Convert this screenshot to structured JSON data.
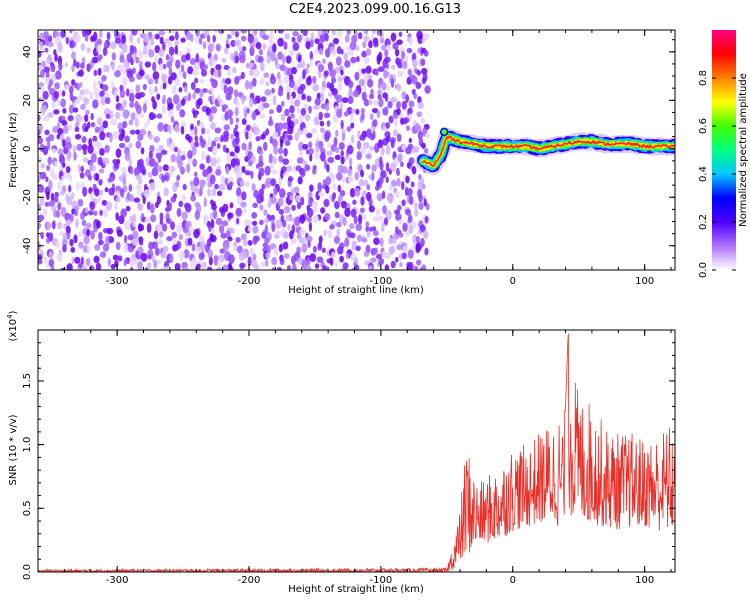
{
  "title": "C2E4.2023.099.00.16.G13",
  "chart_data": [
    {
      "type": "heatmap",
      "name": "spectrogram",
      "xlabel": "Height of straight line (km)",
      "ylabel": "Frequency (Hz)",
      "xlim": [
        -360,
        123
      ],
      "ylim": [
        -50,
        49
      ],
      "xticks": [
        -300,
        -200,
        -100,
        0,
        100
      ],
      "yticks": [
        -40,
        -20,
        0,
        20,
        40
      ],
      "noise_region_x": [
        -360,
        -65
      ],
      "signal_track": {
        "x": [
          -68,
          -60,
          -55,
          -50,
          -45,
          -40,
          -30,
          -20,
          -10,
          0,
          10,
          20,
          30,
          40,
          50,
          60,
          70,
          80,
          90,
          100,
          110,
          123
        ],
        "y": [
          -5,
          -7,
          -3,
          5,
          4,
          3,
          2,
          1,
          1,
          1,
          1,
          0,
          1,
          2,
          3,
          3,
          2,
          2,
          2,
          1,
          1,
          1
        ]
      },
      "colorbar": {
        "label": "Normalized spectral amplitude",
        "range": [
          0,
          1
        ],
        "ticks": [
          "0.0",
          "0.2",
          "0.4",
          "0.6",
          "0.8"
        ],
        "colors": [
          "#ffffff",
          "#b070ff",
          "#4b00ff",
          "#0000ff",
          "#00c8ff",
          "#00ff80",
          "#40ff00",
          "#ffff00",
          "#ff8000",
          "#ff0000",
          "#ff0080"
        ]
      }
    },
    {
      "type": "line",
      "name": "snr",
      "xlabel": "Height of straight line (km)",
      "ylabel": "SNR (10 * v/v)",
      "yscale_note": "(x10",
      "yscale_exp": "4",
      "yscale_close": ")",
      "xlim": [
        -360,
        123
      ],
      "ylim": [
        0,
        1.9
      ],
      "xticks": [
        -300,
        -200,
        -100,
        0,
        100
      ],
      "yticks": [
        "0.0",
        "0.5",
        "1.0",
        "1.5"
      ],
      "color": "#e8302a",
      "envelope": {
        "x": [
          -360,
          -50,
          -45,
          -40,
          -35,
          -30,
          -25,
          -20,
          -10,
          0,
          10,
          20,
          30,
          40,
          42,
          50,
          60,
          70,
          80,
          90,
          100,
          110,
          123
        ],
        "lo": [
          0.0,
          0.0,
          0.02,
          0.08,
          0.12,
          0.18,
          0.22,
          0.22,
          0.25,
          0.32,
          0.35,
          0.38,
          0.4,
          0.3,
          0.45,
          0.4,
          0.38,
          0.35,
          0.33,
          0.35,
          0.35,
          0.32,
          0.32
        ],
        "hi": [
          0.02,
          0.03,
          0.25,
          0.5,
          1.05,
          0.8,
          0.7,
          0.75,
          0.85,
          1.0,
          1.0,
          1.1,
          1.2,
          1.3,
          1.88,
          1.4,
          1.35,
          1.15,
          1.1,
          1.1,
          1.05,
          1.1,
          1.2
        ]
      }
    }
  ]
}
